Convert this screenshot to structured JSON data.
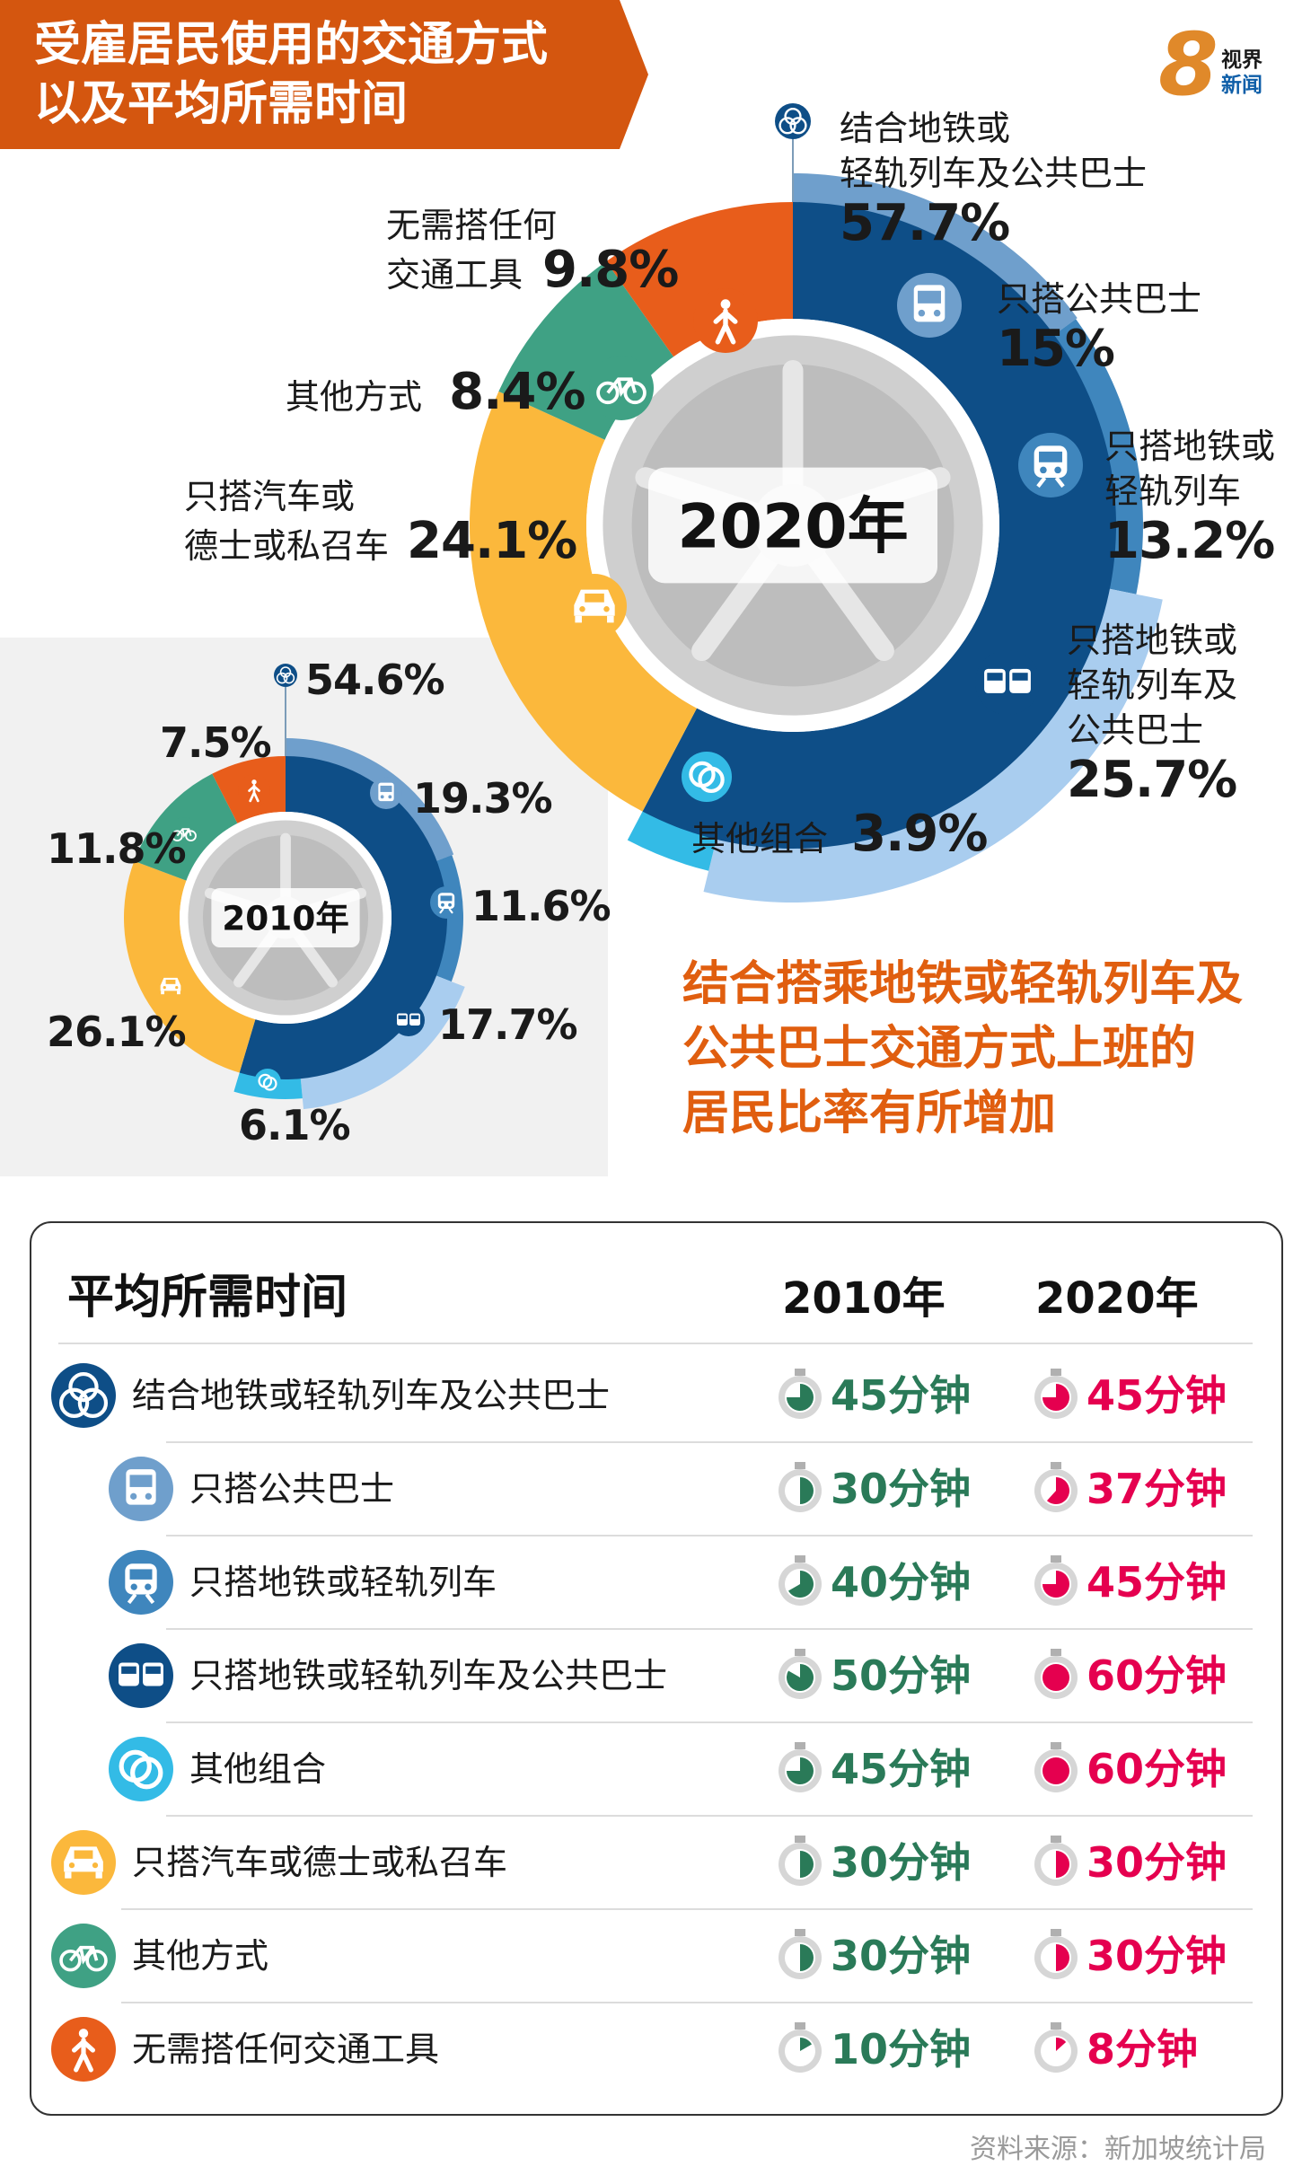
{
  "title": {
    "line1": "受雇居民使用的交通方式",
    "line2": "以及平均所需时间"
  },
  "logo": {
    "number": "8",
    "line1": "视界",
    "line2": "新闻"
  },
  "colors": {
    "banner": "#d4560f",
    "combined": "#0e4e87",
    "bus_only": "#6f9fcc",
    "mrt_only": "#3f86bd",
    "mrt_and_bus": "#a9cdef",
    "other_combo": "#33bbe6",
    "car": "#fbb83c",
    "others": "#3fa184",
    "walk": "#e85d1b",
    "callout": "#e05e0f",
    "t2010": "#2a7a58",
    "t2020": "#e5004f"
  },
  "chart_data": [
    {
      "type": "pie",
      "title": "2020年",
      "slices": [
        {
          "key": "combined",
          "label": "结合地铁或轻轨列车及公共巴士",
          "value": 57.7,
          "display": "57.7%",
          "sub": [
            {
              "key": "bus_only",
              "label": "只搭公共巴士",
              "value": 15,
              "display": "15%"
            },
            {
              "key": "mrt_only",
              "label": "只搭地铁或轻轨列车",
              "value": 13.2,
              "display": "13.2%"
            },
            {
              "key": "mrt_and_bus",
              "label": "只搭地铁或轻轨列车及公共巴士",
              "value": 25.7,
              "display": "25.7%"
            },
            {
              "key": "other_combo",
              "label": "其他组合",
              "value": 3.9,
              "display": "3.9%"
            }
          ]
        },
        {
          "key": "car",
          "label": "只搭汽车或德士或私召车",
          "value": 24.1,
          "display": "24.1%"
        },
        {
          "key": "others",
          "label": "其他方式",
          "value": 8.4,
          "display": "8.4%"
        },
        {
          "key": "walk",
          "label": "无需搭任何交通工具",
          "value": 9.8,
          "display": "9.8%"
        }
      ]
    },
    {
      "type": "pie",
      "title": "2010年",
      "slices": [
        {
          "key": "combined",
          "value": 54.6,
          "display": "54.6%",
          "sub": [
            {
              "key": "bus_only",
              "value": 19.3,
              "display": "19.3%"
            },
            {
              "key": "mrt_only",
              "value": 11.6,
              "display": "11.6%"
            },
            {
              "key": "mrt_and_bus",
              "value": 17.7,
              "display": "17.7%"
            },
            {
              "key": "other_combo",
              "value": 6.1,
              "display": "6.1%"
            }
          ]
        },
        {
          "key": "car",
          "value": 26.1,
          "display": "26.1%"
        },
        {
          "key": "others",
          "value": 11.8,
          "display": "11.8%"
        },
        {
          "key": "walk",
          "value": 7.5,
          "display": "7.5%"
        }
      ]
    },
    {
      "type": "table",
      "title": "平均所需时间",
      "columns": [
        "2010年",
        "2020年"
      ],
      "rows": [
        {
          "key": "combined",
          "label": "结合地铁或轻轨列车及公共巴士",
          "m2010": 45,
          "t2010": "45分钟",
          "m2020": 45,
          "t2020": "45分钟"
        },
        {
          "key": "bus_only",
          "label": "只搭公共巴士",
          "m2010": 30,
          "t2010": "30分钟",
          "m2020": 37,
          "t2020": "37分钟"
        },
        {
          "key": "mrt_only",
          "label": "只搭地铁或轻轨列车",
          "m2010": 40,
          "t2010": "40分钟",
          "m2020": 45,
          "t2020": "45分钟"
        },
        {
          "key": "mrt_and_bus",
          "label": "只搭地铁或轻轨列车及公共巴士",
          "m2010": 50,
          "t2010": "50分钟",
          "m2020": 60,
          "t2020": "60分钟"
        },
        {
          "key": "other_combo",
          "label": "其他组合",
          "m2010": 45,
          "t2010": "45分钟",
          "m2020": 60,
          "t2020": "60分钟"
        },
        {
          "key": "car",
          "label": "只搭汽车或德士或私召车",
          "m2010": 30,
          "t2010": "30分钟",
          "m2020": 30,
          "t2020": "30分钟"
        },
        {
          "key": "others",
          "label": "其他方式",
          "m2010": 30,
          "t2010": "30分钟",
          "m2020": 30,
          "t2020": "30分钟"
        },
        {
          "key": "walk",
          "label": "无需搭任何交通工具",
          "m2010": 10,
          "t2010": "10分钟",
          "m2020": 8,
          "t2020": "8分钟"
        }
      ]
    }
  ],
  "labels2020": {
    "combined_l1": "结合地铁或",
    "combined_l2": "轻轨列车及公共巴士",
    "bus_l1": "只搭公共巴士",
    "mrt_l1": "只搭地铁或",
    "mrt_l2": "轻轨列车",
    "mrtbus_l1": "只搭地铁或",
    "mrtbus_l2": "轻轨列车及",
    "mrtbus_l3": "公共巴士",
    "combo_l1": "其他组合",
    "car_l1": "只搭汽车或",
    "car_l2": "德士或私召车",
    "others_l1": "其他方式",
    "walk_l1": "无需搭任何",
    "walk_l2": "交通工具"
  },
  "callout": {
    "line1": "结合搭乘地铁或轻轨列车及",
    "line2": "公共巴士交通方式上班的",
    "line3": "居民比率有所增加"
  },
  "source": "资料来源：新加坡统计局",
  "icons": [
    "venn-icon",
    "bus-icon",
    "train-icon",
    "train-bus-icon",
    "rings-icon",
    "car-icon",
    "bicycle-icon",
    "walker-icon",
    "stopwatch-icon"
  ]
}
